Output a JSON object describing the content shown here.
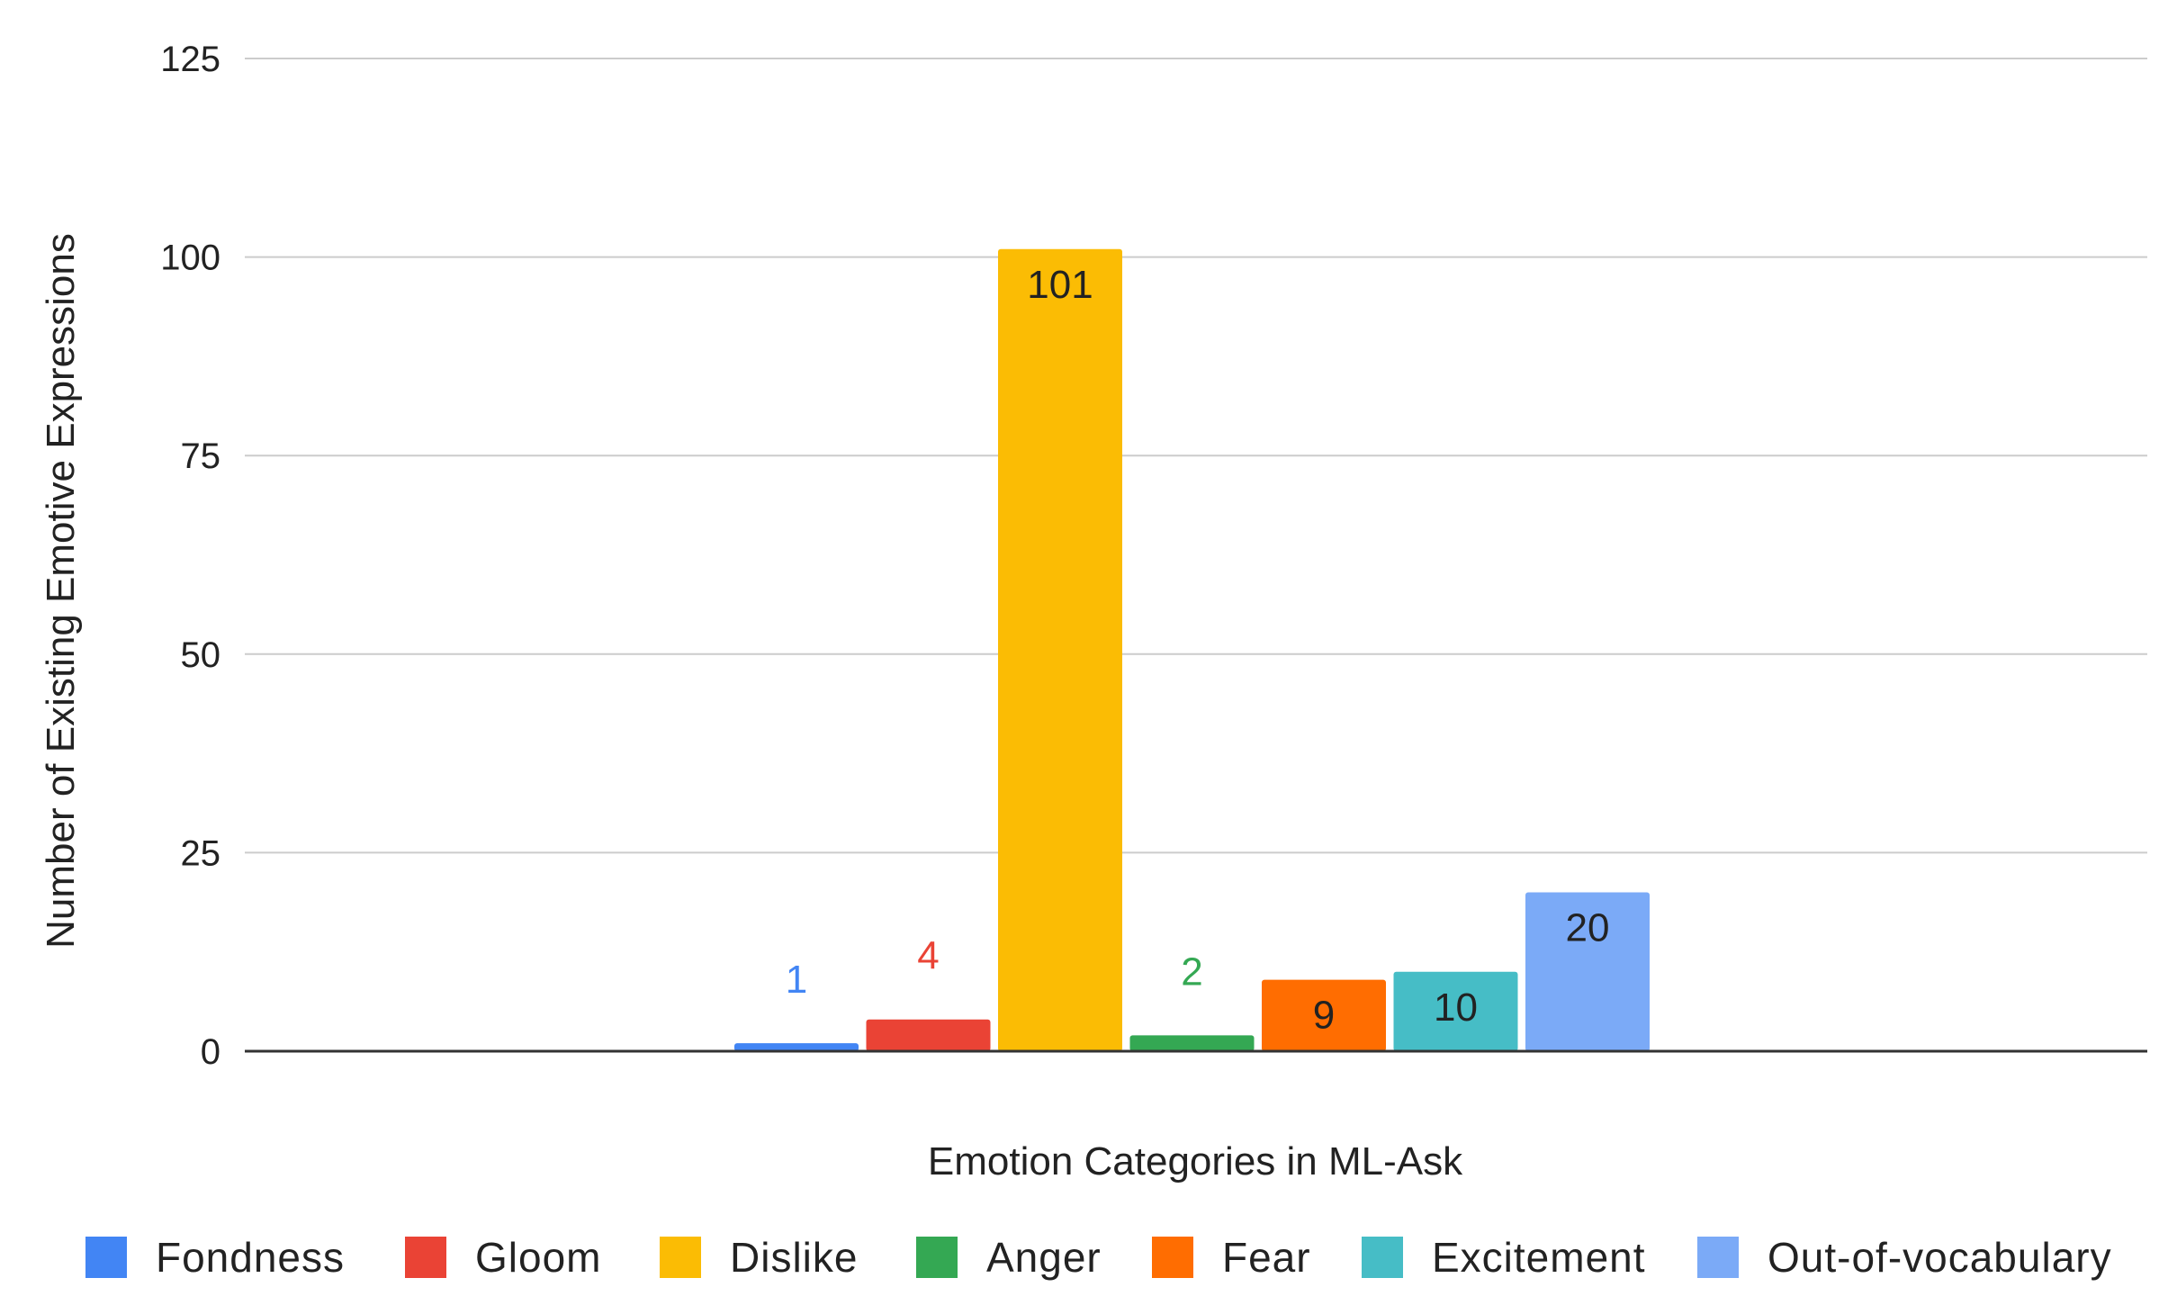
{
  "chart_data": {
    "type": "bar",
    "xlabel": "Emotion Categories in ML-Ask",
    "ylabel": "Number of Existing Emotive Expressions",
    "ylim": [
      0,
      125
    ],
    "yticks": [
      0,
      25,
      50,
      75,
      100,
      125
    ],
    "grid": true,
    "legend_position": "bottom",
    "series": [
      {
        "name": "Fondness",
        "value": 1,
        "color": "#4285F4",
        "label_inside": false
      },
      {
        "name": "Gloom",
        "value": 4,
        "color": "#EA4335",
        "label_inside": false
      },
      {
        "name": "Dislike",
        "value": 101,
        "color": "#FBBC04",
        "label_inside": true
      },
      {
        "name": "Anger",
        "value": 2,
        "color": "#34A853",
        "label_inside": false
      },
      {
        "name": "Fear",
        "value": 9,
        "color": "#FF6D01",
        "label_inside": true
      },
      {
        "name": "Excitement",
        "value": 10,
        "color": "#46BDC6",
        "label_inside": true
      },
      {
        "name": "Out-of-vocabulary",
        "value": 20,
        "color": "#7BAAF7",
        "label_inside": true
      }
    ]
  }
}
